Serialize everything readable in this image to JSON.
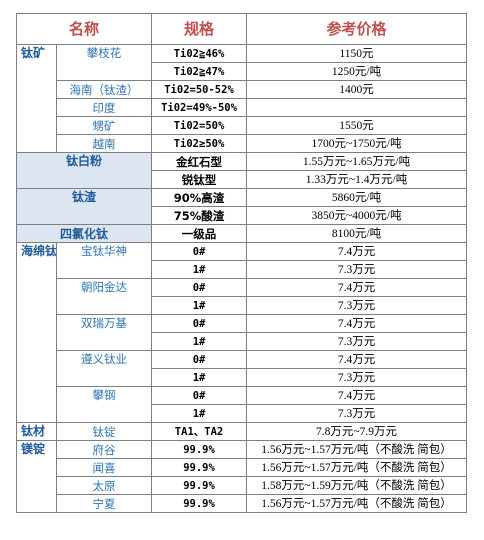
{
  "header": {
    "name": "名称",
    "spec": "规格",
    "price": "参考价格"
  },
  "titanium_ore": {
    "category": "钛矿",
    "rows": [
      {
        "product": "攀枝花",
        "spec": "Ti02≧46%",
        "price": "1150元"
      },
      {
        "product": "",
        "spec": "Ti02≧47%",
        "price": "1250元/吨"
      },
      {
        "product": "海南（钛渣）",
        "spec": "Ti02=50-52%",
        "price": "1400元"
      },
      {
        "product": "印度",
        "spec": "Ti02=49%-50%",
        "price": ""
      },
      {
        "product": "甥矿",
        "spec": "Ti02=50%",
        "price": "1550元"
      },
      {
        "product": "越南",
        "spec": "Ti02≥50%",
        "price": "1700元~1750元/吨"
      }
    ]
  },
  "titanium_dioxide": {
    "category": "钛白粉",
    "rows": [
      {
        "spec": "金红石型",
        "price": "1.55万元~1.65万元/吨"
      },
      {
        "spec": "锐钛型",
        "price": "1.33万元~1.4万元/吨"
      }
    ]
  },
  "titanium_slag": {
    "category": "钛渣",
    "rows": [
      {
        "spec": "90%高渣",
        "price": "5860元/吨"
      },
      {
        "spec": "75%酸渣",
        "price": "3850元~4000元/吨"
      }
    ]
  },
  "ticl4": {
    "category": "四氯化钛",
    "spec": "一级品",
    "price": "8100元/吨"
  },
  "sponge": {
    "category": "海绵钛",
    "groups": [
      {
        "product": "宝钛华神",
        "rows": [
          {
            "spec": "0#",
            "price": "7.4万元"
          },
          {
            "spec": "1#",
            "price": "7.3万元"
          }
        ]
      },
      {
        "product": "朝阳金达",
        "rows": [
          {
            "spec": "0#",
            "price": "7.4万元"
          },
          {
            "spec": "1#",
            "price": "7.3万元"
          }
        ]
      },
      {
        "product": "双瑞万基",
        "rows": [
          {
            "spec": "0#",
            "price": "7.4万元"
          },
          {
            "spec": "1#",
            "price": "7.3万元"
          }
        ]
      },
      {
        "product": "遵义钛业",
        "rows": [
          {
            "spec": "0#",
            "price": "7.4万元"
          },
          {
            "spec": "1#",
            "price": "7.3万元"
          }
        ]
      },
      {
        "product": "攀钢",
        "rows": [
          {
            "spec": "0#",
            "price": "7.4万元"
          },
          {
            "spec": "1#",
            "price": "7.3万元"
          }
        ]
      }
    ]
  },
  "ti_material": {
    "category": "钛材",
    "product": "钛锭",
    "spec": "TA1、TA2",
    "price": "7.8万元~7.9万元"
  },
  "magnesium": {
    "category": "镁锭",
    "rows": [
      {
        "product": "府谷",
        "spec": "99.9%",
        "price": "1.56万元~1.57万元/吨（不酸洗 简包）"
      },
      {
        "product": "闻喜",
        "spec": "99.9%",
        "price": "1.56万元~1.57万元/吨（不酸洗 简包）"
      },
      {
        "product": "太原",
        "spec": "99.9%",
        "price": "1.58万元~1.59万元/吨（不酸洗 简包）"
      },
      {
        "product": "宁夏",
        "spec": "99.9%",
        "price": "1.56万元~1.57万元/吨（不酸洗 简包）"
      }
    ]
  }
}
